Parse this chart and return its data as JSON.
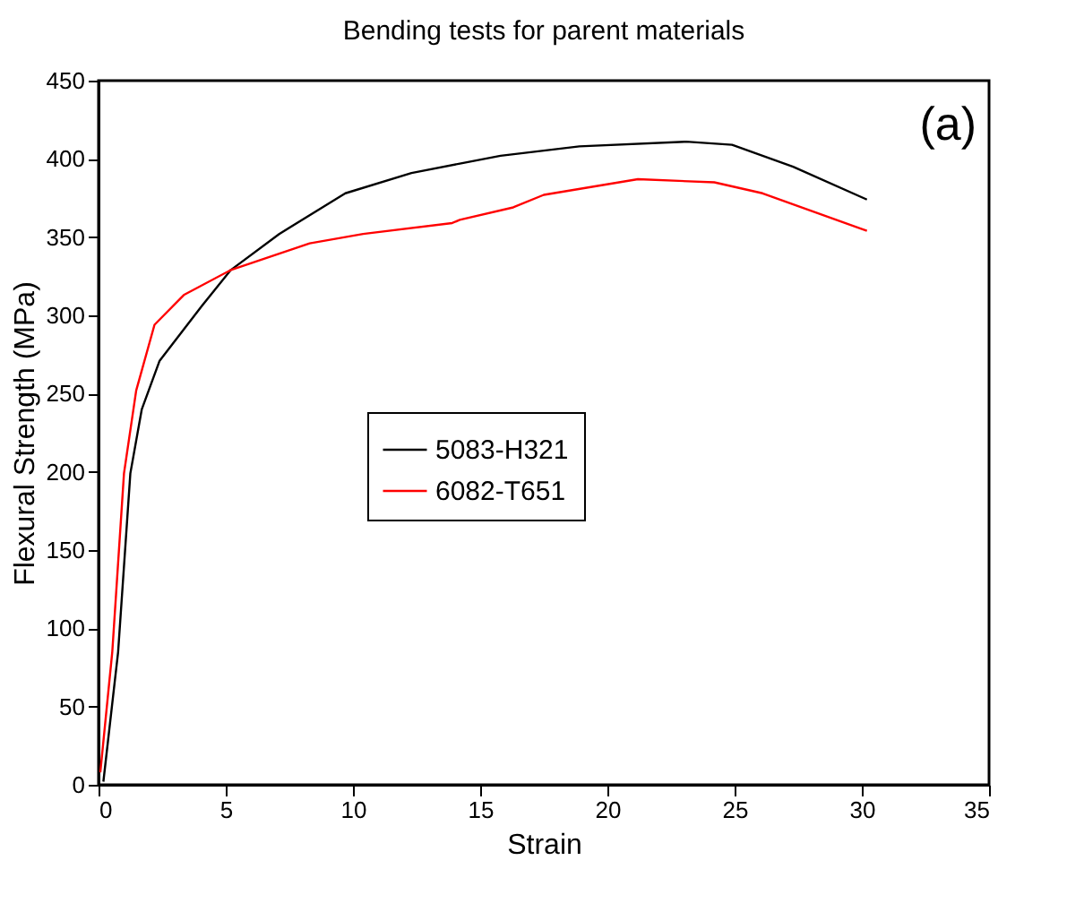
{
  "chart_data": {
    "type": "line",
    "title": "Bending tests for parent materials",
    "xlabel": "Strain",
    "ylabel": "Flexural Strength (MPa)",
    "xlim": [
      0,
      35
    ],
    "xticks": [
      0,
      5,
      10,
      15,
      20,
      25,
      30,
      35
    ],
    "ylim": [
      0,
      450
    ],
    "yticks": [
      0,
      50,
      100,
      150,
      200,
      250,
      300,
      350,
      400,
      450
    ],
    "grid": false,
    "legend": "center",
    "line_style": "solid",
    "marker": "none",
    "annotations": [
      "(a)"
    ],
    "series": [
      {
        "name": "5083-H321",
        "color": "#000000",
        "x": [
          0.19,
          0.77,
          1.25,
          1.7,
          2.4,
          4.06,
          5.2,
          7.1,
          9.7,
          12.3,
          14.2,
          15.8,
          18.9,
          23.1,
          24.9,
          27.3,
          30.2
        ],
        "values": [
          2,
          85,
          199,
          240,
          271,
          306,
          329,
          352,
          378,
          391,
          397,
          402,
          408,
          411,
          409,
          395,
          374
        ]
      },
      {
        "name": "6082-T651",
        "color": "#ff0000",
        "x": [
          0.07,
          0.54,
          1.0,
          1.48,
          2.2,
          3.35,
          5.2,
          8.3,
          10.4,
          13.9,
          14.2,
          16.3,
          17.5,
          21.2,
          24.2,
          26.1,
          30.2
        ],
        "values": [
          8,
          85,
          199,
          252,
          294,
          313,
          329,
          346,
          352,
          359,
          361,
          369,
          377,
          387,
          385,
          378,
          354
        ]
      }
    ]
  }
}
